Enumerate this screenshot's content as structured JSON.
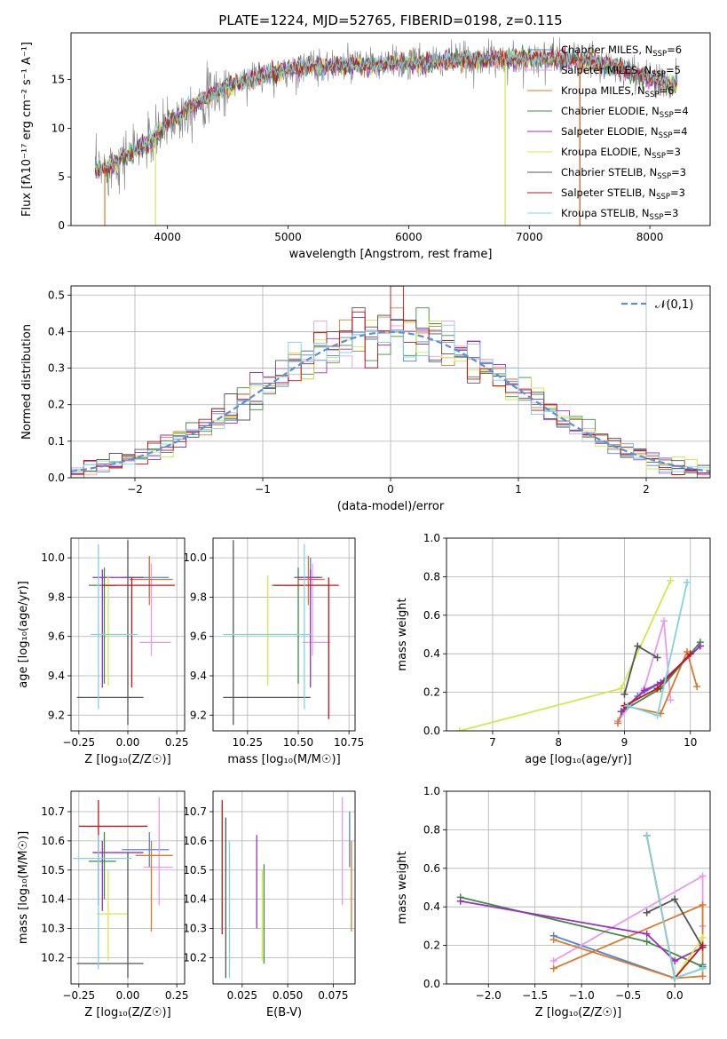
{
  "figure_title": "PLATE=1224, MJD=52765, FIBERID=0198, z=0.115",
  "colors": {
    "chabrier_miles": "#4f86d6",
    "salpeter_miles": "#e99af0",
    "kroupa_miles": "#d97a2e",
    "chabrier_elodie": "#3f8c3f",
    "salpeter_elodie": "#9b2fbf",
    "kroupa_elodie": "#d4e84a",
    "chabrier_stelib": "#555555",
    "salpeter_stelib": "#c0151a",
    "kroupa_stelib": "#7fd4e0",
    "data": "#808080",
    "gaussian": "#5b8fd6"
  },
  "chart_data": [
    {
      "id": "spectrum",
      "type": "line",
      "xlabel": "wavelength [Angstrom, rest frame]",
      "ylabel": "Flux [f_λ10^-17 erg cm^-2 s^-1 A^-1]",
      "xlim": [
        3200,
        8500
      ],
      "ylim": [
        0,
        19.8
      ],
      "xticks": [
        4000,
        5000,
        6000,
        7000,
        8000
      ],
      "yticks": [
        0,
        5,
        10,
        15
      ],
      "legend_position": "upper-right",
      "series": [
        {
          "name": "Chabrier MILES, N_SSP=6",
          "color": "chabrier_miles"
        },
        {
          "name": "Salpeter MILES, N_SSP=5",
          "color": "salpeter_miles"
        },
        {
          "name": "Kroupa MILES, N_SSP=6",
          "color": "kroupa_miles"
        },
        {
          "name": "Chabrier ELODIE, N_SSP=4",
          "color": "chabrier_elodie"
        },
        {
          "name": "Salpeter ELODIE, N_SSP=4",
          "color": "salpeter_elodie"
        },
        {
          "name": "Kroupa ELODIE, N_SSP=3",
          "color": "kroupa_elodie"
        },
        {
          "name": "Chabrier STELIB, N_SSP=3",
          "color": "chabrier_stelib"
        },
        {
          "name": "Salpeter STELIB, N_SSP=3",
          "color": "salpeter_stelib"
        },
        {
          "name": "Kroupa STELIB, N_SSP=3",
          "color": "kroupa_stelib"
        }
      ],
      "continuum": {
        "x": [
          3400,
          3500,
          3600,
          3700,
          3800,
          3900,
          4000,
          4100,
          4200,
          4300,
          4400,
          4500,
          4700,
          4900,
          5100,
          5300,
          5500,
          5700,
          5900,
          6100,
          6300,
          6500,
          6700,
          6900,
          7100,
          7300,
          7500,
          7700,
          7900,
          8100,
          8230
        ],
        "y": [
          5.6,
          5.9,
          6.8,
          7.5,
          8.2,
          9.0,
          10.6,
          11.3,
          12.2,
          13.0,
          13.6,
          14.3,
          15.1,
          15.7,
          16.2,
          16.4,
          16.4,
          16.5,
          16.6,
          16.7,
          16.9,
          17.0,
          17.1,
          17.1,
          17.2,
          17.1,
          16.8,
          16.3,
          15.5,
          14.7,
          14.4
        ]
      },
      "noise_amplitude": 1.6
    },
    {
      "id": "residuals",
      "type": "histogram",
      "xlabel": "(data-model)/error",
      "ylabel": "Normed distribution",
      "xlim": [
        -2.5,
        2.5
      ],
      "ylim": [
        0,
        0.525
      ],
      "xticks": [
        -2,
        -1,
        0,
        1,
        2
      ],
      "yticks": [
        0.0,
        0.1,
        0.2,
        0.3,
        0.4,
        0.5
      ],
      "bin_width": 0.1,
      "gaussian_label": "𝒩(0,1)",
      "legend_position": "upper-right",
      "series_colors": [
        "chabrier_miles",
        "salpeter_miles",
        "kroupa_miles",
        "chabrier_elodie",
        "salpeter_elodie",
        "kroupa_elodie",
        "chabrier_stelib",
        "salpeter_stelib",
        "kroupa_stelib"
      ]
    },
    {
      "id": "age_vs_Z",
      "type": "errorbar",
      "xlabel": "Z [log10(Z/Z☉)]",
      "ylabel": "age  [log10(age/yr)]",
      "xlim": [
        -0.29,
        0.29
      ],
      "ylim": [
        9.12,
        10.1
      ],
      "xticks": [
        -0.25,
        0.0,
        0.25
      ],
      "xtick_labels": [
        "−0.25",
        "0.00",
        "0.25"
      ],
      "yticks": [
        9.2,
        9.4,
        9.6,
        9.8,
        10.0
      ],
      "points": [
        {
          "c": "chabrier_miles",
          "x": 0.11,
          "xe": [
            0.14,
            0.1
          ],
          "y": 9.9,
          "ye": [
            0.1,
            0.1
          ]
        },
        {
          "c": "salpeter_miles",
          "x": 0.12,
          "xe": [
            0.06,
            0.1
          ],
          "y": 9.57,
          "ye": [
            0.07,
            0.4
          ]
        },
        {
          "c": "kroupa_miles",
          "x": 0.11,
          "xe": [
            0.1,
            0.12
          ],
          "y": 9.89,
          "ye": [
            0.13,
            0.12
          ]
        },
        {
          "c": "chabrier_elodie",
          "x": -0.12,
          "xe": [
            0.08,
            0.06
          ],
          "y": 9.86,
          "ye": [
            0.5,
            0.09
          ]
        },
        {
          "c": "salpeter_elodie",
          "x": -0.13,
          "xe": [
            0.05,
            0.21
          ],
          "y": 9.9,
          "ye": [
            0.56,
            0.04
          ]
        },
        {
          "c": "kroupa_elodie",
          "x": -0.1,
          "xe": [
            0.06,
            0.1
          ],
          "y": 9.61,
          "ye": [
            0.26,
            0.3
          ]
        },
        {
          "c": "chabrier_stelib",
          "x": 0.0,
          "xe": [
            0.26,
            0.08
          ],
          "y": 9.29,
          "ye": [
            0.14,
            0.8
          ]
        },
        {
          "c": "salpeter_stelib",
          "x": 0.02,
          "xe": [
            0.15,
            0.22
          ],
          "y": 9.86,
          "ye": [
            0.52,
            0.04
          ]
        },
        {
          "c": "kroupa_stelib",
          "x": -0.15,
          "xe": [
            0.04,
            0.2
          ],
          "y": 9.61,
          "ye": [
            0.38,
            0.46
          ]
        }
      ]
    },
    {
      "id": "age_vs_mass",
      "type": "errorbar",
      "xlabel": "mass [log10(M/M☉)]",
      "ylabel": "",
      "xlim": [
        10.08,
        10.78
      ],
      "ylim": [
        9.12,
        10.1
      ],
      "xticks": [
        10.25,
        10.5,
        10.75
      ],
      "xtick_labels": [
        "10.25",
        "10.50",
        "10.75"
      ],
      "yticks": [
        9.2,
        9.4,
        9.6,
        9.8,
        10.0
      ],
      "points": [
        {
          "c": "chabrier_miles",
          "x": 10.56,
          "xe": [
            0.06,
            0.06
          ],
          "y": 9.9,
          "ye": [
            0.1,
            0.1
          ]
        },
        {
          "c": "salpeter_miles",
          "x": 10.57,
          "xe": [
            0.05,
            0.09
          ],
          "y": 9.57,
          "ye": [
            0.07,
            0.4
          ]
        },
        {
          "c": "kroupa_miles",
          "x": 10.55,
          "xe": [
            0.05,
            0.08
          ],
          "y": 9.89,
          "ye": [
            0.13,
            0.12
          ]
        },
        {
          "c": "chabrier_elodie",
          "x": 10.5,
          "xe": [
            0.13,
            0.03
          ],
          "y": 9.86,
          "ye": [
            0.5,
            0.09
          ]
        },
        {
          "c": "salpeter_elodie",
          "x": 10.56,
          "xe": [
            0.08,
            0.05
          ],
          "y": 9.9,
          "ye": [
            0.56,
            0.04
          ]
        },
        {
          "c": "kroupa_elodie",
          "x": 10.35,
          "xe": [
            0.12,
            0.15
          ],
          "y": 9.61,
          "ye": [
            0.26,
            0.3
          ]
        },
        {
          "c": "chabrier_stelib",
          "x": 10.18,
          "xe": [
            0.05,
            0.38
          ],
          "y": 9.29,
          "ye": [
            0.14,
            0.8
          ]
        },
        {
          "c": "salpeter_stelib",
          "x": 10.65,
          "xe": [
            0.27,
            0.05
          ],
          "y": 9.86,
          "ye": [
            0.68,
            0.04
          ]
        },
        {
          "c": "kroupa_stelib",
          "x": 10.53,
          "xe": [
            0.4,
            0.03
          ],
          "y": 9.61,
          "ye": [
            0.38,
            0.46
          ]
        }
      ]
    },
    {
      "id": "mass_vs_Z",
      "type": "errorbar",
      "xlabel": "Z [log10(Z/Z☉)]",
      "ylabel": "mass [log10(M/M☉)]",
      "xlim": [
        -0.29,
        0.29
      ],
      "ylim": [
        10.11,
        10.77
      ],
      "xticks": [
        -0.25,
        0.0,
        0.25
      ],
      "xtick_labels": [
        "−0.25",
        "0.00",
        "0.25"
      ],
      "yticks": [
        10.2,
        10.3,
        10.4,
        10.5,
        10.6,
        10.7
      ],
      "points": [
        {
          "c": "chabrier_miles",
          "x": 0.11,
          "xe": [
            0.14,
            0.1
          ],
          "y": 10.57,
          "ye": [
            0.06,
            0.06
          ]
        },
        {
          "c": "salpeter_miles",
          "x": 0.16,
          "xe": [
            0.08,
            0.07
          ],
          "y": 10.51,
          "ye": [
            0.13,
            0.24
          ]
        },
        {
          "c": "kroupa_miles",
          "x": 0.12,
          "xe": [
            0.08,
            0.11
          ],
          "y": 10.55,
          "ye": [
            0.26,
            0.05
          ]
        },
        {
          "c": "chabrier_elodie",
          "x": -0.12,
          "xe": [
            0.08,
            0.06
          ],
          "y": 10.53,
          "ye": [
            0.13,
            0.1
          ]
        },
        {
          "c": "salpeter_elodie",
          "x": -0.13,
          "xe": [
            0.05,
            0.21
          ],
          "y": 10.56,
          "ye": [
            0.2,
            0.04
          ]
        },
        {
          "c": "kroupa_elodie",
          "x": -0.1,
          "xe": [
            0.06,
            0.1
          ],
          "y": 10.35,
          "ye": [
            0.16,
            0.15
          ]
        },
        {
          "c": "chabrier_stelib",
          "x": 0.0,
          "xe": [
            0.26,
            0.08
          ],
          "y": 10.18,
          "ye": [
            0.05,
            0.38
          ]
        },
        {
          "c": "salpeter_stelib",
          "x": -0.15,
          "xe": [
            0.1,
            0.25
          ],
          "y": 10.65,
          "ye": [
            0.27,
            0.09
          ]
        },
        {
          "c": "kroupa_stelib",
          "x": -0.15,
          "xe": [
            0.13,
            0.17
          ],
          "y": 10.54,
          "ye": [
            0.38,
            0.08
          ]
        }
      ]
    },
    {
      "id": "mass_vs_ebv",
      "type": "errorbar",
      "xlabel": "E(B-V)",
      "ylabel": "",
      "xlim": [
        0.009,
        0.087
      ],
      "ylim": [
        10.11,
        10.77
      ],
      "xticks": [
        0.025,
        0.05,
        0.075
      ],
      "xtick_labels": [
        "0.025",
        "0.050",
        "0.075"
      ],
      "yticks": [
        10.2,
        10.3,
        10.4,
        10.5,
        10.6,
        10.7
      ],
      "points": [
        {
          "c": "chabrier_miles",
          "x": 0.084,
          "xe": [
            0,
            0
          ],
          "y": 10.57,
          "ye": [
            0.06,
            0.13
          ]
        },
        {
          "c": "salpeter_miles",
          "x": 0.08,
          "xe": [
            0,
            0
          ],
          "y": 10.51,
          "ye": [
            0.13,
            0.24
          ]
        },
        {
          "c": "kroupa_miles",
          "x": 0.085,
          "xe": [
            0,
            0
          ],
          "y": 10.55,
          "ye": [
            0.26,
            0.05
          ]
        },
        {
          "c": "chabrier_elodie",
          "x": 0.037,
          "xe": [
            0,
            0
          ],
          "y": 10.35,
          "ye": [
            0.17,
            0.17
          ]
        },
        {
          "c": "salpeter_elodie",
          "x": 0.033,
          "xe": [
            0,
            0
          ],
          "y": 10.5,
          "ye": [
            0.2,
            0.12
          ]
        },
        {
          "c": "kroupa_elodie",
          "x": 0.036,
          "xe": [
            0,
            0
          ],
          "y": 10.35,
          "ye": [
            0.16,
            0.15
          ]
        },
        {
          "c": "chabrier_stelib",
          "x": 0.016,
          "xe": [
            0,
            0
          ],
          "y": 10.4,
          "ye": [
            0.27,
            0.28
          ]
        },
        {
          "c": "salpeter_stelib",
          "x": 0.014,
          "xe": [
            0,
            0
          ],
          "y": 10.56,
          "ye": [
            0.28,
            0.18
          ]
        },
        {
          "c": "kroupa_stelib",
          "x": 0.018,
          "xe": [
            0,
            0
          ],
          "y": 10.35,
          "ye": [
            0.22,
            0.25
          ]
        }
      ]
    },
    {
      "id": "mass_weight_vs_age",
      "type": "line",
      "xlabel": "age  [log10(age/yr)]",
      "ylabel": "mass weight",
      "xlim": [
        6.3,
        10.3
      ],
      "ylim": [
        0,
        1.0
      ],
      "xticks": [
        7,
        8,
        9,
        10
      ],
      "yticks": [
        0.0,
        0.2,
        0.4,
        0.6,
        0.8,
        1.0
      ],
      "series": [
        {
          "c": "chabrier_miles",
          "x": [
            8.9,
            9.0,
            9.2,
            9.5,
            9.6,
            10.15
          ],
          "y": [
            0.05,
            0.11,
            0.18,
            0.24,
            0.26,
            0.44
          ]
        },
        {
          "c": "salpeter_miles",
          "x": [
            8.9,
            9.3,
            9.6,
            9.7
          ],
          "y": [
            0.05,
            0.22,
            0.57,
            0.16
          ]
        },
        {
          "c": "kroupa_miles",
          "x": [
            8.9,
            9.0,
            9.55,
            9.95,
            10.1
          ],
          "y": [
            0.04,
            0.13,
            0.09,
            0.41,
            0.23
          ]
        },
        {
          "c": "chabrier_elodie",
          "x": [
            8.95,
            9.55,
            10.15
          ],
          "y": [
            0.1,
            0.22,
            0.46
          ]
        },
        {
          "c": "salpeter_elodie",
          "x": [
            8.95,
            9.3,
            9.55,
            10.15
          ],
          "y": [
            0.1,
            0.21,
            0.25,
            0.44
          ]
        },
        {
          "c": "kroupa_elodie",
          "x": [
            6.5,
            8.95,
            9.7
          ],
          "y": [
            0.0,
            0.22,
            0.78
          ]
        },
        {
          "c": "chabrier_stelib",
          "x": [
            9.0,
            9.2,
            9.5
          ],
          "y": [
            0.19,
            0.44,
            0.38
          ]
        },
        {
          "c": "salpeter_stelib",
          "x": [
            9.0,
            9.5,
            10.0
          ],
          "y": [
            0.13,
            0.22,
            0.4
          ]
        },
        {
          "c": "kroupa_stelib",
          "x": [
            9.05,
            9.5,
            9.95
          ],
          "y": [
            0.13,
            0.08,
            0.77
          ]
        }
      ]
    },
    {
      "id": "mass_weight_vs_Z",
      "type": "line",
      "xlabel": "Z [log10(Z/Z☉)]",
      "ylabel": "mass weight",
      "xlim": [
        -2.45,
        0.38
      ],
      "ylim": [
        0,
        1.0
      ],
      "xticks": [
        -2.0,
        -1.5,
        -1.0,
        -0.5,
        0.0
      ],
      "xtick_labels": [
        "−2.0",
        "−1.5",
        "−1.0",
        "−0.5",
        "0.0"
      ],
      "yticks": [
        0.0,
        0.2,
        0.4,
        0.6,
        0.8,
        1.0
      ],
      "series": [
        {
          "c": "chabrier_miles",
          "x": [
            -1.3,
            0.0,
            0.3,
            0.3
          ],
          "y": [
            0.25,
            0.03,
            0.08,
            0.1
          ]
        },
        {
          "c": "salpeter_miles",
          "x": [
            -1.3,
            0.3,
            0.3
          ],
          "y": [
            0.12,
            0.56,
            0.3
          ]
        },
        {
          "c": "kroupa_miles",
          "x": [
            -1.3,
            0.0,
            0.3,
            0.3,
            -1.3
          ],
          "y": [
            0.23,
            0.03,
            0.04,
            0.41,
            0.08
          ]
        },
        {
          "c": "chabrier_elodie",
          "x": [
            -2.3,
            -0.3,
            0.3
          ],
          "y": [
            0.45,
            0.22,
            0.09
          ]
        },
        {
          "c": "salpeter_elodie",
          "x": [
            -2.3,
            -0.3,
            0.0,
            0.3
          ],
          "y": [
            0.43,
            0.26,
            0.12,
            0.19
          ]
        },
        {
          "c": "kroupa_elodie",
          "x": [
            -0.3,
            0.0,
            0.3
          ],
          "y": [
            0.77,
            0.03,
            0.24
          ]
        },
        {
          "c": "chabrier_stelib",
          "x": [
            -0.3,
            0.0,
            0.3
          ],
          "y": [
            0.37,
            0.44,
            0.19
          ]
        },
        {
          "c": "salpeter_stelib",
          "x": [
            -0.3,
            0.0,
            0.3
          ],
          "y": [
            0.77,
            0.03,
            0.2
          ]
        },
        {
          "c": "kroupa_stelib",
          "x": [
            -0.3,
            0.0,
            0.3
          ],
          "y": [
            0.77,
            0.03,
            0.08
          ]
        }
      ]
    }
  ]
}
